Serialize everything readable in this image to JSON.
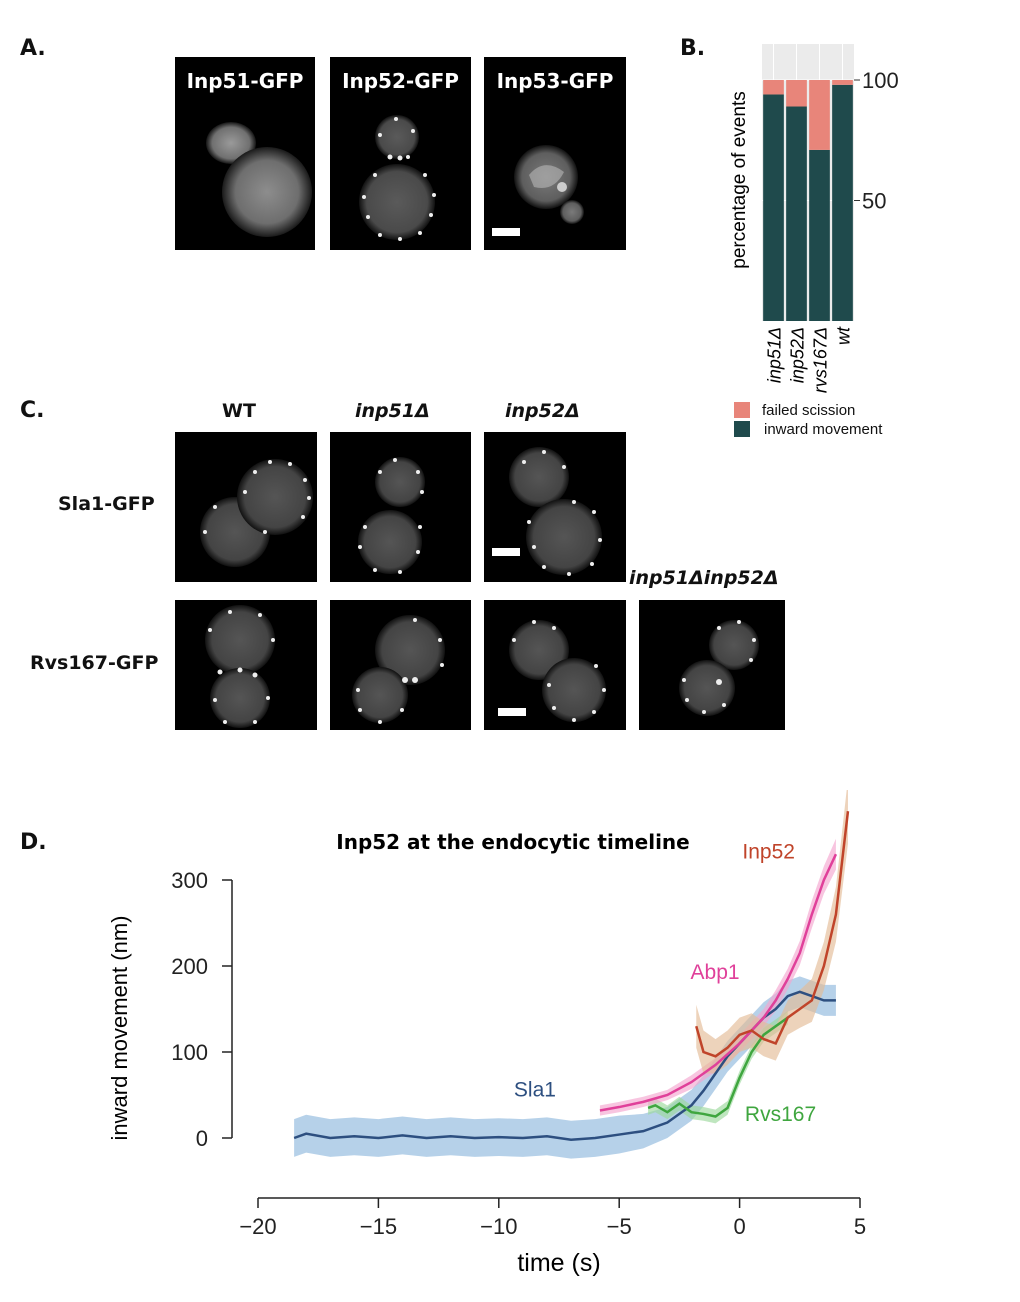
{
  "panels": {
    "a": {
      "letter": "A.",
      "images": [
        {
          "label": "Inp51-GFP"
        },
        {
          "label": "Inp52-GFP"
        },
        {
          "label": "Inp53-GFP"
        }
      ]
    },
    "b": {
      "letter": "B."
    },
    "c": {
      "letter": "C.",
      "columns": [
        "WT",
        "inp51Δ",
        "inp52Δ",
        "inp51Δinp52Δ"
      ],
      "rows": [
        "Sla1-GFP",
        "Rvs167-GFP"
      ]
    },
    "d": {
      "letter": "D."
    }
  },
  "chart_data": [
    {
      "id": "B",
      "type": "bar",
      "stacked": true,
      "orientation": "vertical",
      "categories": [
        "inp51Δ",
        "inp52Δ",
        "rvs167Δ",
        "wt"
      ],
      "series": [
        {
          "name": "inward movement",
          "color": "#1f4a4c",
          "values": [
            94,
            89,
            71,
            98
          ]
        },
        {
          "name": "failed scission",
          "color": "#e8857a",
          "values": [
            6,
            11,
            29,
            2
          ]
        }
      ],
      "ylabel": "percentage of events",
      "yticks": [
        50,
        100
      ],
      "ylim": [
        0,
        100
      ],
      "y_axis_side": "right",
      "legend_position": "bottom",
      "grid": true
    },
    {
      "id": "D",
      "type": "line",
      "title": "Inp52 at the endocytic timeline",
      "xlabel": "time (s)",
      "ylabel": "inward movement (nm)",
      "xlim": [
        -20,
        5
      ],
      "ylim": [
        0,
        300
      ],
      "xticks": [
        -20,
        -15,
        -10,
        -5,
        0,
        5
      ],
      "yticks": [
        0,
        100,
        200,
        300
      ],
      "series": [
        {
          "name": "Sla1",
          "color": "#2d4f80",
          "band": "#8fb8dd",
          "x": [
            -18.5,
            -18,
            -17,
            -16,
            -15,
            -14,
            -13,
            -12,
            -11,
            -10,
            -9,
            -8,
            -7,
            -6,
            -5,
            -4,
            -3,
            -2.5,
            -2,
            -1.5,
            -1,
            -0.5,
            0,
            0.5,
            1,
            1.5,
            2,
            2.5,
            3,
            3.5,
            4
          ],
          "y": [
            0,
            5,
            0,
            2,
            0,
            3,
            0,
            2,
            0,
            1,
            0,
            2,
            -2,
            0,
            4,
            8,
            18,
            28,
            38,
            55,
            75,
            95,
            110,
            125,
            140,
            150,
            165,
            170,
            165,
            160,
            160
          ],
          "band_width": [
            22,
            22,
            22,
            22,
            22,
            22,
            22,
            22,
            22,
            22,
            22,
            22,
            22,
            22,
            22,
            20,
            18,
            18,
            18,
            18,
            18,
            18,
            18,
            18,
            18,
            18,
            18,
            18,
            18,
            18,
            18
          ]
        },
        {
          "name": "Rvs167",
          "color": "#3fa63f",
          "band": "#9dd89d",
          "x": [
            -3.8,
            -3.5,
            -3,
            -2.5,
            -2,
            -1.5,
            -1,
            -0.5,
            0,
            0.5,
            1,
            1.5,
            2
          ],
          "y": [
            35,
            38,
            30,
            40,
            30,
            28,
            25,
            35,
            70,
            100,
            120,
            130,
            140
          ],
          "band_width": [
            8,
            8,
            8,
            8,
            8,
            8,
            8,
            8,
            8,
            8,
            8,
            8,
            8
          ]
        },
        {
          "name": "Abp1",
          "color": "#e0409a",
          "band": "#f4a6cf",
          "x": [
            -5.8,
            -5,
            -4,
            -3,
            -2,
            -1,
            0,
            0.5,
            1,
            1.5,
            2,
            2.5,
            3,
            3.5,
            4
          ],
          "y": [
            32,
            36,
            42,
            50,
            65,
            85,
            110,
            125,
            140,
            160,
            185,
            215,
            260,
            300,
            330
          ],
          "band_width": [
            6,
            6,
            6,
            6,
            8,
            8,
            10,
            10,
            10,
            12,
            12,
            14,
            16,
            16,
            18
          ]
        },
        {
          "name": "Inp52",
          "color": "#c0442a",
          "band": "#e3bc96",
          "x": [
            -1.8,
            -1.5,
            -1,
            -0.5,
            0,
            0.5,
            1,
            1.5,
            2,
            2.5,
            3,
            3.5,
            4,
            4.5
          ],
          "y": [
            130,
            100,
            95,
            105,
            120,
            125,
            115,
            110,
            140,
            150,
            160,
            200,
            260,
            380
          ],
          "band_width": [
            25,
            25,
            20,
            20,
            20,
            20,
            20,
            20,
            20,
            22,
            25,
            28,
            32,
            38
          ]
        }
      ]
    }
  ]
}
